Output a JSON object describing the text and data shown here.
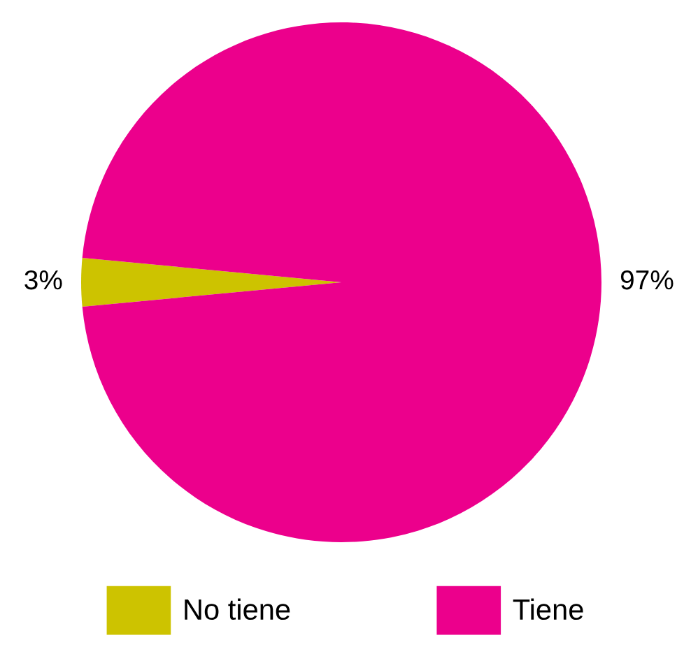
{
  "chart_data": {
    "type": "pie",
    "categories": [
      "No tiene",
      "Tiene"
    ],
    "values": [
      3,
      97
    ],
    "colors": [
      "#cdc300",
      "#ec008c"
    ],
    "value_labels": [
      "3%",
      "97%"
    ],
    "legend": "bottom"
  }
}
